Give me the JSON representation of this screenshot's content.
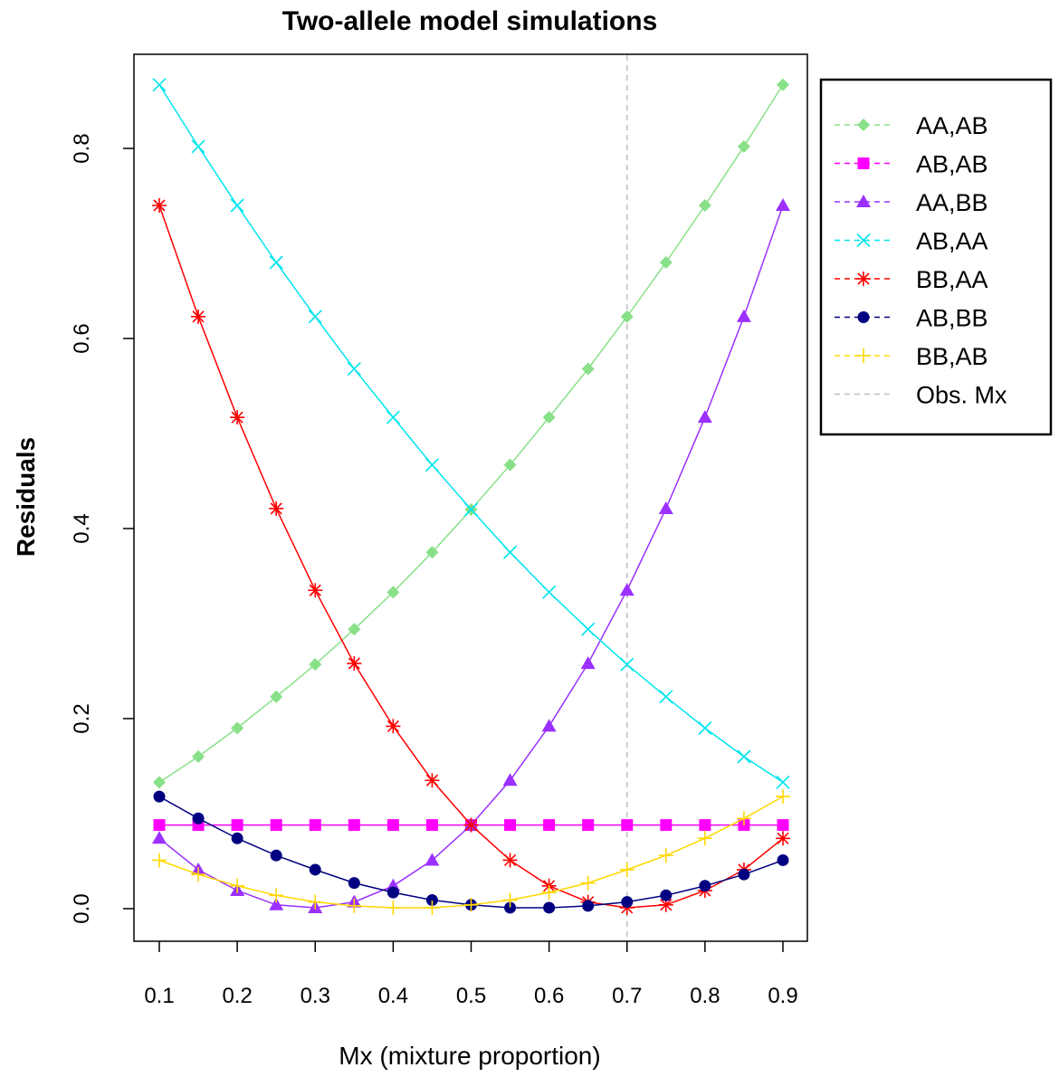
{
  "chart_data": {
    "type": "line",
    "title": "Two-allele model simulations",
    "xlabel": "Mx (mixture proportion)",
    "ylabel": "Residuals",
    "xlim": [
      0.1,
      0.9
    ],
    "ylim": [
      0.0,
      0.8
    ],
    "x_ticks": [
      "0.1",
      "0.2",
      "0.3",
      "0.4",
      "0.5",
      "0.6",
      "0.7",
      "0.8",
      "0.9"
    ],
    "y_ticks": [
      "0.0",
      "0.2",
      "0.4",
      "0.6",
      "0.8"
    ],
    "x": [
      0.1,
      0.15,
      0.2,
      0.25,
      0.3,
      0.35,
      0.4,
      0.45,
      0.5,
      0.55,
      0.6,
      0.65,
      0.7,
      0.75,
      0.8,
      0.85,
      0.9
    ],
    "grid": false,
    "legend_position": "right",
    "observed_mx": 0.7,
    "series": [
      {
        "name": "AA,AB",
        "color": "#88e088",
        "marker": "diamond",
        "values": [
          0.133,
          0.16,
          0.19,
          0.223,
          0.257,
          0.294,
          0.333,
          0.375,
          0.42,
          0.467,
          0.517,
          0.568,
          0.623,
          0.68,
          0.74,
          0.802,
          0.867
        ]
      },
      {
        "name": "AB,AB",
        "color": "#ff00ff",
        "marker": "square",
        "values": [
          0.088,
          0.088,
          0.088,
          0.088,
          0.088,
          0.088,
          0.088,
          0.088,
          0.088,
          0.088,
          0.088,
          0.088,
          0.088,
          0.088,
          0.088,
          0.088,
          0.088
        ]
      },
      {
        "name": "AA,BB",
        "color": "#9b30ff",
        "marker": "triangle",
        "values": [
          0.074,
          0.041,
          0.019,
          0.004,
          0.001,
          0.007,
          0.024,
          0.051,
          0.088,
          0.135,
          0.192,
          0.258,
          0.335,
          0.421,
          0.517,
          0.623,
          0.74
        ]
      },
      {
        "name": "AB,AA",
        "color": "#00e5ee",
        "marker": "x",
        "values": [
          0.867,
          0.802,
          0.74,
          0.68,
          0.623,
          0.568,
          0.517,
          0.467,
          0.42,
          0.375,
          0.333,
          0.294,
          0.257,
          0.223,
          0.19,
          0.16,
          0.133
        ]
      },
      {
        "name": "BB,AA",
        "color": "#ff0000",
        "marker": "asterisk",
        "values": [
          0.74,
          0.623,
          0.517,
          0.421,
          0.335,
          0.258,
          0.192,
          0.135,
          0.088,
          0.051,
          0.024,
          0.007,
          0.001,
          0.004,
          0.019,
          0.041,
          0.074
        ]
      },
      {
        "name": "AB,BB",
        "color": "#000080",
        "marker": "circle",
        "values": [
          0.118,
          0.095,
          0.074,
          0.056,
          0.041,
          0.027,
          0.017,
          0.009,
          0.004,
          0.001,
          0.001,
          0.003,
          0.007,
          0.014,
          0.024,
          0.036,
          0.051
        ]
      },
      {
        "name": "BB,AB",
        "color": "#ffd700",
        "marker": "plus",
        "values": [
          0.051,
          0.036,
          0.024,
          0.014,
          0.007,
          0.003,
          0.001,
          0.001,
          0.004,
          0.009,
          0.017,
          0.027,
          0.041,
          0.056,
          0.074,
          0.095,
          0.118
        ]
      }
    ],
    "vline": {
      "name": "Obs. Mx",
      "x": 0.7,
      "color": "#c0c0c0",
      "style": "dashed"
    }
  }
}
